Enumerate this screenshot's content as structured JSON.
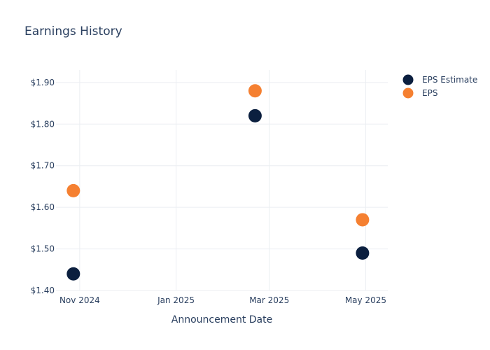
{
  "chart_data": {
    "type": "scatter",
    "title": "Earnings History",
    "xlabel": "Announcement Date",
    "ylabel": "",
    "x_tick_labels": [
      "Nov 2024",
      "Jan 2025",
      "Mar 2025",
      "May 2025"
    ],
    "x_tick_dates": [
      "2024-11-01",
      "2025-01-01",
      "2025-03-01",
      "2025-05-01"
    ],
    "xlim": [
      "2024-10-17",
      "2025-05-15"
    ],
    "y_tick_labels": [
      "$1.40",
      "$1.50",
      "$1.60",
      "$1.70",
      "$1.80",
      "$1.90"
    ],
    "y_tick_values": [
      1.4,
      1.5,
      1.6,
      1.7,
      1.8,
      1.9
    ],
    "ylim": [
      1.4,
      1.93
    ],
    "grid": true,
    "legend_position": "top-right",
    "series": [
      {
        "name": "EPS Estimate",
        "color": "#0b1f3f",
        "points": [
          {
            "x": "2024-10-28",
            "y": 1.44
          },
          {
            "x": "2025-02-20",
            "y": 1.82
          },
          {
            "x": "2025-04-29",
            "y": 1.49
          }
        ]
      },
      {
        "name": "EPS",
        "color": "#f58031",
        "points": [
          {
            "x": "2024-10-28",
            "y": 1.64
          },
          {
            "x": "2025-02-20",
            "y": 1.88
          },
          {
            "x": "2025-04-29",
            "y": 1.57
          }
        ]
      }
    ]
  }
}
